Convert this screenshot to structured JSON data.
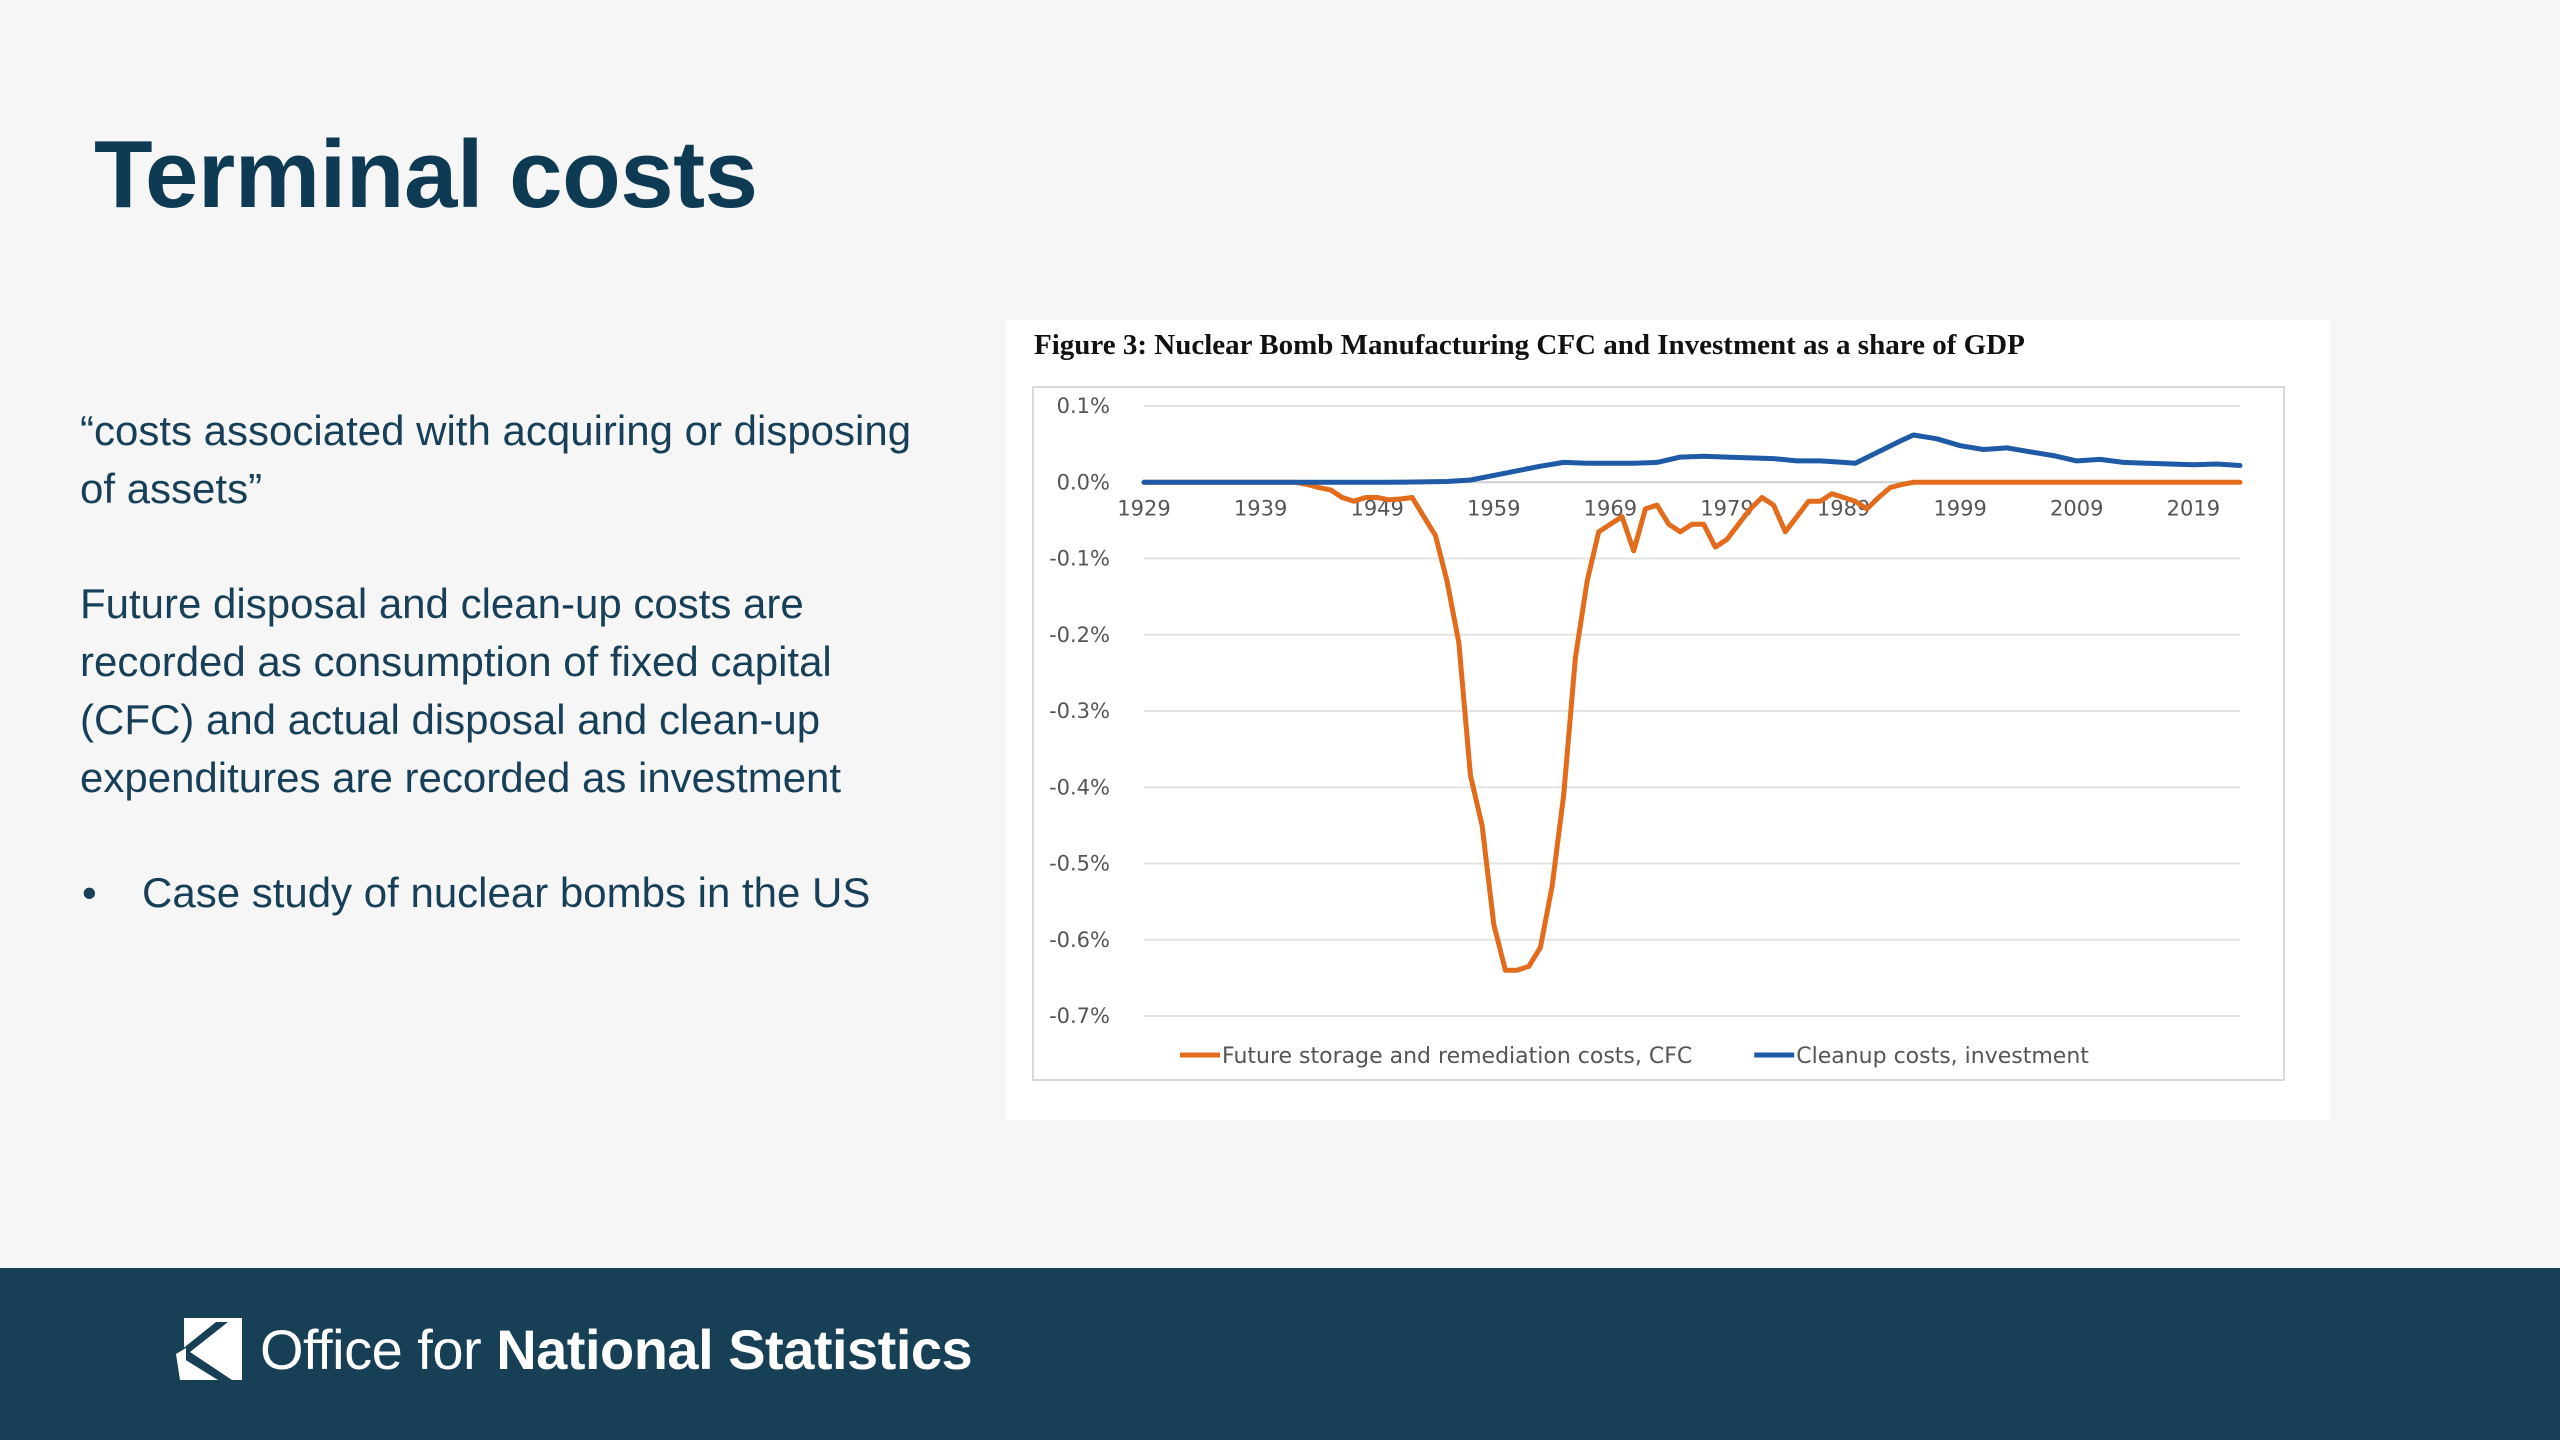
{
  "slide": {
    "title": "Terminal costs",
    "quote": "“costs associated with acquiring or disposing of assets”",
    "paragraph": "Future disposal and clean-up costs are recorded as consumption of fixed capital (CFC) and actual disposal and clean-up expenditures are recorded as investment",
    "bullet": "Case study of nuclear bombs in the US"
  },
  "footer": {
    "org_light": "Office for ",
    "org_bold": "National Statistics",
    "background": "#173f55"
  },
  "chart_data": {
    "type": "line",
    "title": "Figure 3: Nuclear Bomb Manufacturing CFC and Investment as a share of GDP",
    "xlabel": "",
    "ylabel": "",
    "xlim": [
      1929,
      2023
    ],
    "ylim": [
      -0.7,
      0.1
    ],
    "x_ticks": [
      1929,
      1939,
      1949,
      1959,
      1969,
      1979,
      1989,
      1999,
      2009,
      2019
    ],
    "y_ticks": [
      0.1,
      0.0,
      -0.1,
      -0.2,
      -0.3,
      -0.4,
      -0.5,
      -0.6,
      -0.7
    ],
    "y_tick_labels": [
      "0.1%",
      "0.0%",
      "-0.1%",
      "-0.2%",
      "-0.3%",
      "-0.4%",
      "-0.5%",
      "-0.6%",
      "-0.7%"
    ],
    "grid": "horizontal",
    "legend_position": "bottom",
    "series": [
      {
        "name": "Future storage and remediation costs, CFC",
        "color": "#e26b1c",
        "points": [
          [
            1929,
            0
          ],
          [
            1942,
            0
          ],
          [
            1943,
            -0.003
          ],
          [
            1944,
            -0.007
          ],
          [
            1945,
            -0.01
          ],
          [
            1946,
            -0.02
          ],
          [
            1947,
            -0.025
          ],
          [
            1948,
            -0.02
          ],
          [
            1949,
            -0.02
          ],
          [
            1950,
            -0.023
          ],
          [
            1951,
            -0.022
          ],
          [
            1952,
            -0.02
          ],
          [
            1953,
            -0.045
          ],
          [
            1954,
            -0.07
          ],
          [
            1955,
            -0.13
          ],
          [
            1956,
            -0.21
          ],
          [
            1957,
            -0.385
          ],
          [
            1958,
            -0.45
          ],
          [
            1959,
            -0.58
          ],
          [
            1960,
            -0.64
          ],
          [
            1961,
            -0.64
          ],
          [
            1962,
            -0.635
          ],
          [
            1963,
            -0.61
          ],
          [
            1964,
            -0.53
          ],
          [
            1965,
            -0.41
          ],
          [
            1966,
            -0.23
          ],
          [
            1967,
            -0.13
          ],
          [
            1968,
            -0.065
          ],
          [
            1969,
            -0.055
          ],
          [
            1970,
            -0.045
          ],
          [
            1971,
            -0.09
          ],
          [
            1972,
            -0.035
          ],
          [
            1973,
            -0.03
          ],
          [
            1974,
            -0.055
          ],
          [
            1975,
            -0.065
          ],
          [
            1976,
            -0.055
          ],
          [
            1977,
            -0.055
          ],
          [
            1978,
            -0.085
          ],
          [
            1979,
            -0.075
          ],
          [
            1980,
            -0.055
          ],
          [
            1981,
            -0.035
          ],
          [
            1982,
            -0.02
          ],
          [
            1983,
            -0.03
          ],
          [
            1984,
            -0.065
          ],
          [
            1985,
            -0.045
          ],
          [
            1986,
            -0.025
          ],
          [
            1987,
            -0.025
          ],
          [
            1988,
            -0.015
          ],
          [
            1989,
            -0.02
          ],
          [
            1990,
            -0.025
          ],
          [
            1991,
            -0.035
          ],
          [
            1992,
            -0.02
          ],
          [
            1993,
            -0.007
          ],
          [
            1994,
            -0.003
          ],
          [
            1995,
            0
          ],
          [
            2000,
            0
          ],
          [
            2010,
            0
          ],
          [
            2020,
            0
          ],
          [
            2023,
            0
          ]
        ]
      },
      {
        "name": "Cleanup costs, investment",
        "color": "#1f5aa6",
        "points": [
          [
            1929,
            0
          ],
          [
            1950,
            0
          ],
          [
            1955,
            0.001
          ],
          [
            1957,
            0.003
          ],
          [
            1959,
            0.009
          ],
          [
            1961,
            0.015
          ],
          [
            1963,
            0.021
          ],
          [
            1965,
            0.026
          ],
          [
            1967,
            0.025
          ],
          [
            1969,
            0.025
          ],
          [
            1971,
            0.025
          ],
          [
            1973,
            0.026
          ],
          [
            1975,
            0.033
          ],
          [
            1977,
            0.034
          ],
          [
            1979,
            0.033
          ],
          [
            1981,
            0.032
          ],
          [
            1983,
            0.031
          ],
          [
            1985,
            0.028
          ],
          [
            1987,
            0.028
          ],
          [
            1989,
            0.026
          ],
          [
            1990,
            0.025
          ],
          [
            1992,
            0.04
          ],
          [
            1994,
            0.055
          ],
          [
            1995,
            0.062
          ],
          [
            1997,
            0.057
          ],
          [
            1999,
            0.048
          ],
          [
            2001,
            0.043
          ],
          [
            2003,
            0.045
          ],
          [
            2005,
            0.04
          ],
          [
            2007,
            0.035
          ],
          [
            2009,
            0.028
          ],
          [
            2011,
            0.03
          ],
          [
            2013,
            0.026
          ],
          [
            2015,
            0.025
          ],
          [
            2017,
            0.024
          ],
          [
            2019,
            0.023
          ],
          [
            2021,
            0.024
          ],
          [
            2023,
            0.022
          ]
        ]
      }
    ]
  }
}
